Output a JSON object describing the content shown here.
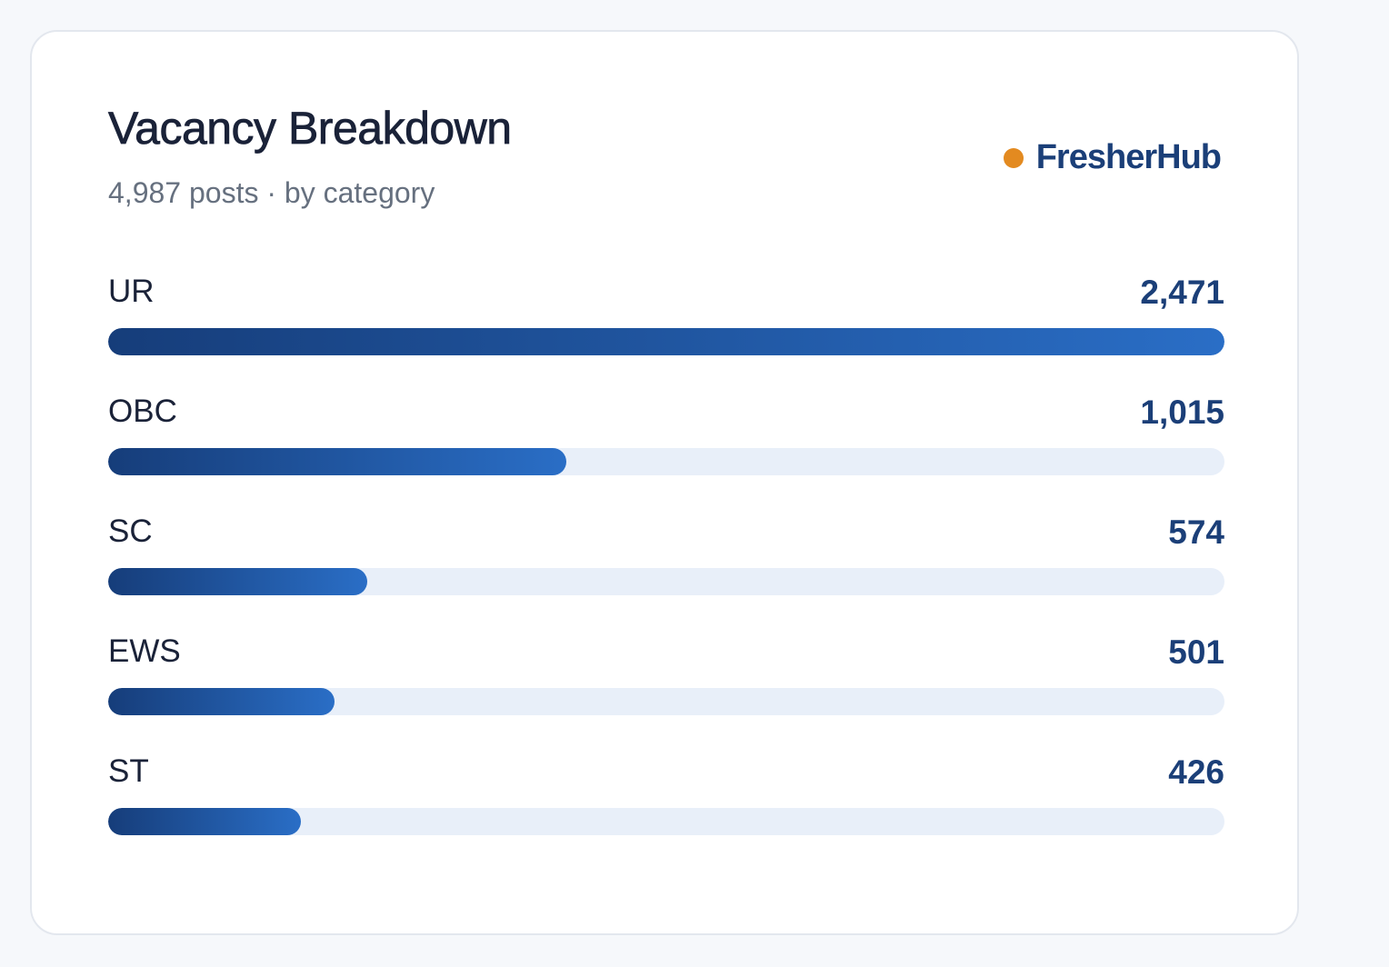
{
  "card": {
    "title": "Vacancy Breakdown",
    "subtitle": "4,987 posts · by category",
    "brand": "FresherHub"
  },
  "colors": {
    "accent_dot": "#e38a20",
    "brand_text": "#1b3f78",
    "bar_start": "#163d7a",
    "bar_end": "#2a6ec6",
    "track": "#e8eff9"
  },
  "chart_data": {
    "type": "bar",
    "orientation": "horizontal",
    "categories": [
      "UR",
      "OBC",
      "SC",
      "EWS",
      "ST"
    ],
    "values": [
      2471,
      1015,
      574,
      501,
      426
    ],
    "value_labels": [
      "2,471",
      "1,015",
      "574",
      "501",
      "426"
    ],
    "xlim": [
      0,
      2471
    ],
    "grid": false
  }
}
